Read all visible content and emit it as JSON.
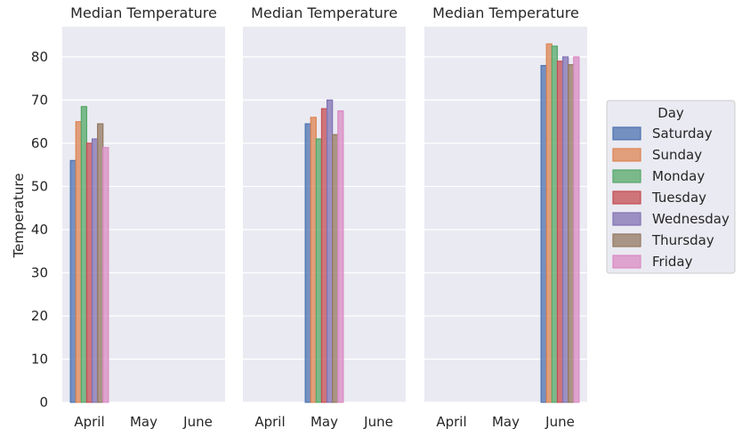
{
  "chart_data": {
    "type": "bar",
    "ylabel": "Temperature",
    "ylim": [
      0,
      87
    ],
    "yticks": [
      0,
      10,
      20,
      30,
      40,
      50,
      60,
      70,
      80
    ],
    "grid": true,
    "legend": {
      "title": "Day",
      "placement": "right",
      "entries": [
        {
          "name": "Saturday",
          "color": "#4c72b0"
        },
        {
          "name": "Sunday",
          "color": "#dd8452"
        },
        {
          "name": "Monday",
          "color": "#55a868"
        },
        {
          "name": "Tuesday",
          "color": "#c44e52"
        },
        {
          "name": "Wednesday",
          "color": "#8172b3"
        },
        {
          "name": "Thursday",
          "color": "#937860"
        },
        {
          "name": "Friday",
          "color": "#da8bc3"
        }
      ]
    },
    "categories": [
      "April",
      "May",
      "June"
    ],
    "panels": [
      {
        "title": "Median Temperature",
        "category": "April",
        "values": [
          56,
          65,
          68.5,
          60,
          61,
          64.5,
          59
        ]
      },
      {
        "title": "Median Temperature",
        "category": "May",
        "values": [
          64.5,
          66,
          61,
          68,
          70,
          62,
          67.5
        ]
      },
      {
        "title": "Median Temperature",
        "category": "June",
        "values": [
          78,
          83,
          82.5,
          79,
          80,
          78.2,
          80
        ]
      }
    ]
  }
}
